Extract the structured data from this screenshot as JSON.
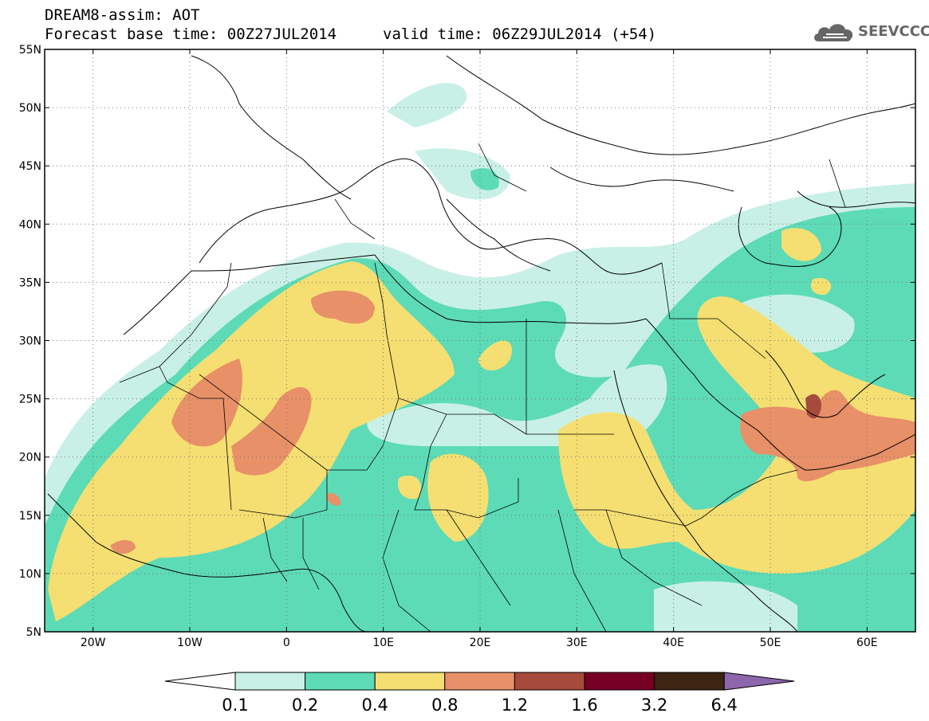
{
  "header": {
    "title": "DREAM8-assim: AOT",
    "base_time": "Forecast base time: 00Z27JUL2014",
    "valid_time": "valid time: 06Z29JUL2014 (+54)"
  },
  "logo": {
    "text": "SEEVCCC",
    "icon": "cloud-icon"
  },
  "map": {
    "lon_range": [
      -25,
      65
    ],
    "lat_range": [
      5,
      55
    ],
    "x_ticks": [
      {
        "lon": -20,
        "label": "20W"
      },
      {
        "lon": -10,
        "label": "10W"
      },
      {
        "lon": 0,
        "label": "0"
      },
      {
        "lon": 10,
        "label": "10E"
      },
      {
        "lon": 20,
        "label": "20E"
      },
      {
        "lon": 30,
        "label": "30E"
      },
      {
        "lon": 40,
        "label": "40E"
      },
      {
        "lon": 50,
        "label": "50E"
      },
      {
        "lon": 60,
        "label": "60E"
      }
    ],
    "y_ticks": [
      {
        "lat": 55,
        "label": "55N"
      },
      {
        "lat": 50,
        "label": "50N"
      },
      {
        "lat": 45,
        "label": "45N"
      },
      {
        "lat": 40,
        "label": "40N"
      },
      {
        "lat": 35,
        "label": "35N"
      },
      {
        "lat": 30,
        "label": "30N"
      },
      {
        "lat": 25,
        "label": "25N"
      },
      {
        "lat": 20,
        "label": "20N"
      },
      {
        "lat": 15,
        "label": "15N"
      },
      {
        "lat": 10,
        "label": "10N"
      },
      {
        "lat": 5,
        "label": "5N"
      }
    ],
    "grid": "dotted"
  },
  "colorbar": {
    "colors": [
      "#ffffff",
      "#c9f0e6",
      "#5ddbb6",
      "#f5df72",
      "#e89067",
      "#a64a3c",
      "#760024",
      "#3d2513",
      "#8d66ac"
    ],
    "labels": [
      "0.1",
      "0.2",
      "0.4",
      "0.8",
      "1.2",
      "1.6",
      "3.2",
      "6.4"
    ]
  }
}
